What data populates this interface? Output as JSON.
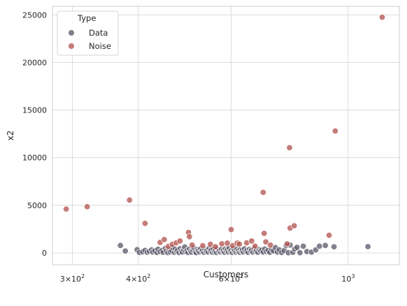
{
  "chart_data": {
    "type": "scatter",
    "xlabel": "Customers",
    "ylabel": "x2",
    "xscale": "log",
    "xlim": [
      275,
      1250
    ],
    "ylim": [
      -1250,
      25900
    ],
    "grid": true,
    "legend_placement": "top-left",
    "x_ticks": [
      {
        "value": 300,
        "base": "3",
        "exp": "2"
      },
      {
        "value": 400,
        "base": "4",
        "exp": "2"
      },
      {
        "value": 600,
        "base": "6",
        "exp": "2"
      },
      {
        "value": 1000,
        "base": "10",
        "exp": "3"
      }
    ],
    "y_ticks": [
      0,
      5000,
      10000,
      15000,
      20000,
      25000
    ],
    "legend": {
      "title": "Type",
      "entries": [
        "Data",
        "Noise"
      ]
    },
    "series": [
      {
        "name": "Data",
        "color": "#5a5667",
        "points": [
          [
            370,
            780
          ],
          [
            378,
            200
          ],
          [
            398,
            340
          ],
          [
            402,
            40
          ],
          [
            408,
            120
          ],
          [
            412,
            260
          ],
          [
            416,
            60
          ],
          [
            420,
            180
          ],
          [
            424,
            320
          ],
          [
            426,
            90
          ],
          [
            430,
            220
          ],
          [
            434,
            40
          ],
          [
            436,
            380
          ],
          [
            440,
            140
          ],
          [
            444,
            260
          ],
          [
            446,
            60
          ],
          [
            450,
            460
          ],
          [
            452,
            190
          ],
          [
            455,
            30
          ],
          [
            458,
            320
          ],
          [
            460,
            110
          ],
          [
            463,
            240
          ],
          [
            465,
            560
          ],
          [
            468,
            60
          ],
          [
            470,
            380
          ],
          [
            473,
            160
          ],
          [
            475,
            280
          ],
          [
            478,
            40
          ],
          [
            480,
            440
          ],
          [
            483,
            200
          ],
          [
            485,
            90
          ],
          [
            488,
            320
          ],
          [
            490,
            620
          ],
          [
            492,
            140
          ],
          [
            495,
            250
          ],
          [
            497,
            40
          ],
          [
            500,
            380
          ],
          [
            503,
            180
          ],
          [
            505,
            80
          ],
          [
            508,
            290
          ],
          [
            510,
            500
          ],
          [
            513,
            130
          ],
          [
            515,
            30
          ],
          [
            518,
            340
          ],
          [
            520,
            210
          ],
          [
            523,
            90
          ],
          [
            525,
            420
          ],
          [
            528,
            170
          ],
          [
            530,
            280
          ],
          [
            533,
            50
          ],
          [
            535,
            360
          ],
          [
            538,
            140
          ],
          [
            540,
            230
          ],
          [
            543,
            80
          ],
          [
            545,
            470
          ],
          [
            548,
            190
          ],
          [
            550,
            300
          ],
          [
            553,
            60
          ],
          [
            555,
            380
          ],
          [
            558,
            130
          ],
          [
            560,
            250
          ],
          [
            563,
            40
          ],
          [
            565,
            440
          ],
          [
            568,
            180
          ],
          [
            570,
            300
          ],
          [
            573,
            90
          ],
          [
            575,
            360
          ],
          [
            578,
            150
          ],
          [
            580,
            240
          ],
          [
            583,
            60
          ],
          [
            585,
            420
          ],
          [
            588,
            200
          ],
          [
            590,
            320
          ],
          [
            593,
            80
          ],
          [
            595,
            510
          ],
          [
            598,
            160
          ],
          [
            600,
            270
          ],
          [
            603,
            40
          ],
          [
            605,
            390
          ],
          [
            608,
            190
          ],
          [
            610,
            300
          ],
          [
            613,
            70
          ],
          [
            615,
            430
          ],
          [
            618,
            150
          ],
          [
            620,
            260
          ],
          [
            623,
            60
          ],
          [
            625,
            360
          ],
          [
            628,
            200
          ],
          [
            630,
            290
          ],
          [
            633,
            90
          ],
          [
            636,
            420
          ],
          [
            640,
            160
          ],
          [
            643,
            260
          ],
          [
            646,
            50
          ],
          [
            650,
            370
          ],
          [
            653,
            190
          ],
          [
            656,
            290
          ],
          [
            660,
            80
          ],
          [
            663,
            440
          ],
          [
            667,
            170
          ],
          [
            670,
            260
          ],
          [
            674,
            60
          ],
          [
            678,
            350
          ],
          [
            682,
            210
          ],
          [
            686,
            300
          ],
          [
            690,
            90
          ],
          [
            695,
            400
          ],
          [
            700,
            150
          ],
          [
            705,
            260
          ],
          [
            710,
            60
          ],
          [
            716,
            380
          ],
          [
            722,
            200
          ],
          [
            728,
            560
          ],
          [
            734,
            90
          ],
          [
            740,
            330
          ],
          [
            748,
            40
          ],
          [
            756,
            240
          ],
          [
            763,
            760
          ],
          [
            770,
            20
          ],
          [
            776,
            820
          ],
          [
            785,
            60
          ],
          [
            792,
            420
          ],
          [
            800,
            580
          ],
          [
            810,
            20
          ],
          [
            822,
            700
          ],
          [
            835,
            140
          ],
          [
            852,
            80
          ],
          [
            868,
            320
          ],
          [
            882,
            700
          ],
          [
            905,
            780
          ],
          [
            940,
            640
          ],
          [
            1090,
            660
          ]
        ]
      },
      {
        "name": "Noise",
        "color": "#b0504b",
        "points": [
          [
            292,
            4600
          ],
          [
            320,
            4850
          ],
          [
            385,
            5550
          ],
          [
            412,
            3100
          ],
          [
            440,
            1100
          ],
          [
            448,
            1400
          ],
          [
            456,
            680
          ],
          [
            464,
            900
          ],
          [
            472,
            1050
          ],
          [
            480,
            1250
          ],
          [
            498,
            2150
          ],
          [
            500,
            1700
          ],
          [
            506,
            820
          ],
          [
            530,
            760
          ],
          [
            548,
            900
          ],
          [
            560,
            650
          ],
          [
            576,
            950
          ],
          [
            590,
            1020
          ],
          [
            600,
            2450
          ],
          [
            604,
            760
          ],
          [
            616,
            1020
          ],
          [
            622,
            920
          ],
          [
            642,
            1050
          ],
          [
            656,
            1250
          ],
          [
            666,
            700
          ],
          [
            690,
            6350
          ],
          [
            693,
            2050
          ],
          [
            698,
            1150
          ],
          [
            712,
            820
          ],
          [
            766,
            950
          ],
          [
            774,
            11050
          ],
          [
            776,
            2600
          ],
          [
            790,
            2850
          ],
          [
            920,
            1850
          ],
          [
            945,
            12800
          ],
          [
            1160,
            24750
          ]
        ]
      }
    ]
  }
}
